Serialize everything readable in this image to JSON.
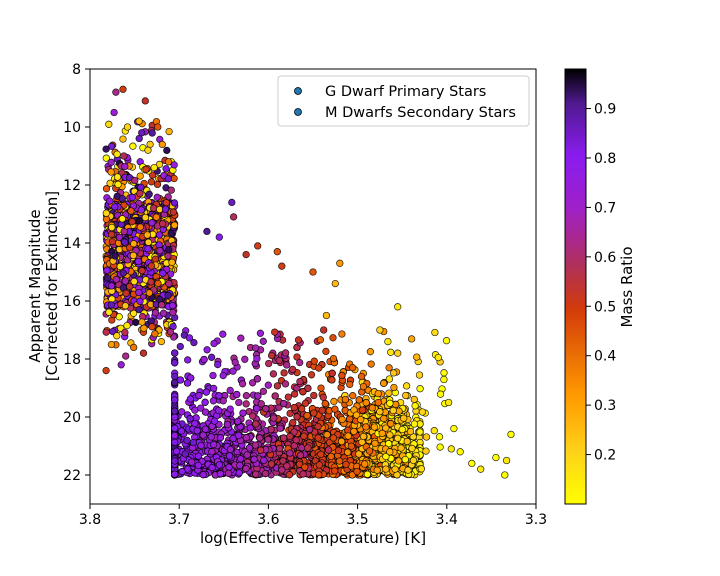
{
  "chart_data": {
    "type": "scatter",
    "xlabel": "log(Effective Temperature) [K]",
    "ylabel_line1": "Apparent Magnitude",
    "ylabel_line2": "[Corrected for Extinction]",
    "xlim": [
      3.8,
      3.3
    ],
    "ylim": [
      23,
      8
    ],
    "x_inverted": true,
    "y_inverted": true,
    "xticks": [
      3.8,
      3.7,
      3.6,
      3.5,
      3.4,
      3.3
    ],
    "xtick_labels": [
      "3.8",
      "3.7",
      "3.6",
      "3.5",
      "3.4",
      "3.3"
    ],
    "yticks": [
      8,
      10,
      12,
      14,
      16,
      18,
      20,
      22
    ],
    "ytick_labels": [
      "8",
      "10",
      "12",
      "14",
      "16",
      "18",
      "20",
      "22"
    ],
    "grid": false,
    "legend": {
      "placement": "top-right",
      "entries": [
        "G Dwarf Primary Stars",
        "M Dwarfs Secondary Stars"
      ]
    },
    "colorbar": {
      "label": "Mass Ratio",
      "range": [
        0.1,
        0.98
      ],
      "ticks": [
        0.2,
        0.3,
        0.4,
        0.5,
        0.6,
        0.7,
        0.8,
        0.9
      ],
      "tick_labels": [
        "0.2",
        "0.3",
        "0.4",
        "0.5",
        "0.6",
        "0.7",
        "0.8",
        "0.9"
      ],
      "colormap": [
        "#ffff00",
        "#ff9a00",
        "#d23a0a",
        "#b0305c",
        "#a020c8",
        "#8a1cf0",
        "#501a90",
        "#000000"
      ]
    },
    "series": [
      {
        "name": "G Dwarf Primary Stars",
        "distribution": {
          "x_range": [
            3.7,
            3.78
          ],
          "y_range": [
            8.7,
            18.4
          ],
          "dense_y_range": [
            12.0,
            17.0
          ]
        },
        "points": [
          {
            "x": 3.763,
            "y": 8.7,
            "c": 0.45
          },
          {
            "x": 3.771,
            "y": 8.8,
            "c": 0.6
          },
          {
            "x": 3.738,
            "y": 9.1,
            "c": 0.5
          },
          {
            "x": 3.773,
            "y": 9.5,
            "c": 0.7
          },
          {
            "x": 3.745,
            "y": 9.8,
            "c": 0.25
          },
          {
            "x": 3.758,
            "y": 10.0,
            "c": 0.2
          },
          {
            "x": 3.724,
            "y": 10.0,
            "c": 0.4
          },
          {
            "x": 3.742,
            "y": 10.2,
            "c": 0.85
          },
          {
            "x": 3.719,
            "y": 10.6,
            "c": 0.3
          },
          {
            "x": 3.735,
            "y": 10.8,
            "c": 0.2
          },
          {
            "x": 3.762,
            "y": 11.0,
            "c": 0.55
          },
          {
            "x": 3.712,
            "y": 11.2,
            "c": 0.35
          },
          {
            "x": 3.728,
            "y": 11.4,
            "c": 0.15
          },
          {
            "x": 3.776,
            "y": 17.5,
            "c": 0.3
          },
          {
            "x": 3.77,
            "y": 17.2,
            "c": 0.2
          },
          {
            "x": 3.76,
            "y": 17.9,
            "c": 0.6
          },
          {
            "x": 3.751,
            "y": 17.6,
            "c": 0.35
          },
          {
            "x": 3.74,
            "y": 17.8,
            "c": 0.5
          },
          {
            "x": 3.782,
            "y": 18.4,
            "c": 0.45
          },
          {
            "x": 3.765,
            "y": 18.2,
            "c": 0.7
          },
          {
            "x": 3.72,
            "y": 17.4,
            "c": 0.25
          },
          {
            "x": 3.745,
            "y": 16.3,
            "c": 0.9
          }
        ]
      },
      {
        "name": "M Dwarfs Secondary Stars",
        "distribution": {
          "x_range": [
            3.33,
            3.71
          ],
          "y_range": [
            12.6,
            22.0
          ]
        },
        "points": [
          {
            "x": 3.641,
            "y": 12.6,
            "c": 0.85
          },
          {
            "x": 3.639,
            "y": 13.1,
            "c": 0.55
          },
          {
            "x": 3.669,
            "y": 13.6,
            "c": 0.9
          },
          {
            "x": 3.655,
            "y": 13.8,
            "c": 0.8
          },
          {
            "x": 3.612,
            "y": 14.1,
            "c": 0.45
          },
          {
            "x": 3.59,
            "y": 14.3,
            "c": 0.4
          },
          {
            "x": 3.625,
            "y": 14.4,
            "c": 0.5
          },
          {
            "x": 3.52,
            "y": 14.7,
            "c": 0.3
          },
          {
            "x": 3.585,
            "y": 14.8,
            "c": 0.45
          },
          {
            "x": 3.55,
            "y": 15.0,
            "c": 0.4
          },
          {
            "x": 3.525,
            "y": 15.4,
            "c": 0.25
          },
          {
            "x": 3.455,
            "y": 16.2,
            "c": 0.15
          },
          {
            "x": 3.535,
            "y": 16.5,
            "c": 0.25
          },
          {
            "x": 3.538,
            "y": 17.0,
            "c": 0.5
          },
          {
            "x": 3.475,
            "y": 17.0,
            "c": 0.2
          },
          {
            "x": 3.466,
            "y": 17.4,
            "c": 0.15
          },
          {
            "x": 3.455,
            "y": 17.8,
            "c": 0.2
          },
          {
            "x": 3.398,
            "y": 19.5,
            "c": 0.15
          },
          {
            "x": 3.392,
            "y": 20.4,
            "c": 0.1
          },
          {
            "x": 3.395,
            "y": 21.1,
            "c": 0.15
          },
          {
            "x": 3.385,
            "y": 21.2,
            "c": 0.1
          },
          {
            "x": 3.328,
            "y": 20.6,
            "c": 0.1
          },
          {
            "x": 3.345,
            "y": 21.4,
            "c": 0.1
          },
          {
            "x": 3.362,
            "y": 21.8,
            "c": 0.15
          },
          {
            "x": 3.372,
            "y": 21.6,
            "c": 0.1
          },
          {
            "x": 3.333,
            "y": 21.5,
            "c": 0.15
          },
          {
            "x": 3.335,
            "y": 22.0,
            "c": 0.1
          }
        ]
      }
    ]
  }
}
